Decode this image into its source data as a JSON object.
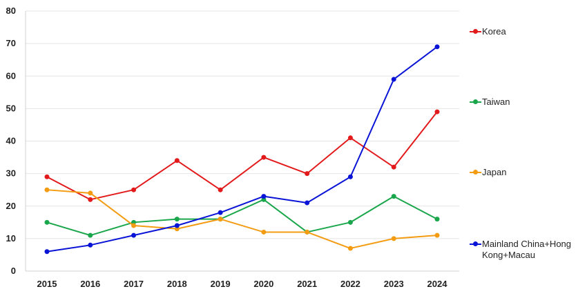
{
  "chart_data": {
    "type": "line",
    "categories": [
      "2015",
      "2016",
      "2017",
      "2018",
      "2019",
      "2020",
      "2021",
      "2022",
      "2023",
      "2024"
    ],
    "ylim": [
      0,
      80
    ],
    "yticks": [
      "0",
      "10",
      "20",
      "30",
      "40",
      "50",
      "60",
      "70",
      "80"
    ],
    "grid": "horizontal",
    "legend_position": "right",
    "series": [
      {
        "name": "Korea",
        "color": "#e31a1c",
        "values": [
          29,
          22,
          25,
          34,
          25,
          35,
          30,
          41,
          32,
          49
        ]
      },
      {
        "name": "Taiwan",
        "color": "#1aa64b",
        "values": [
          15,
          11,
          15,
          16,
          16,
          22,
          12,
          15,
          23,
          16
        ]
      },
      {
        "name": "Japan",
        "color": "#f39c12",
        "values": [
          25,
          24,
          14,
          13,
          16,
          12,
          12,
          7,
          10,
          11
        ]
      },
      {
        "name": "Mainland China+Hong Kong+Macau",
        "color": "#0a14d6",
        "values": [
          6,
          8,
          11,
          14,
          18,
          23,
          21,
          29,
          59,
          69
        ]
      }
    ]
  }
}
